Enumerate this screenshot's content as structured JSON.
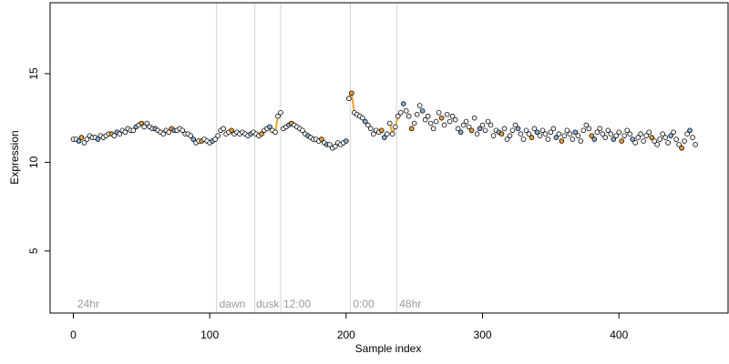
{
  "chart_data": {
    "type": "scatter",
    "title": "",
    "xlabel": "Sample index",
    "ylabel": "Expression",
    "xlim": [
      -17,
      480
    ],
    "ylim": [
      1.5,
      19
    ],
    "xticks": [
      "0",
      "100",
      "200",
      "300",
      "400"
    ],
    "xtick_values": [
      0,
      100,
      200,
      300,
      400
    ],
    "yticks": [
      "5",
      "10",
      "15"
    ],
    "ytick_values": [
      5,
      10,
      15
    ],
    "grid": false,
    "legend": "none",
    "vlines": [
      105,
      133,
      152,
      203,
      237
    ],
    "annotations": [
      {
        "label": "24hr",
        "x": 3
      },
      {
        "label": "dawn",
        "x": 107
      },
      {
        "label": "dusk",
        "x": 134
      },
      {
        "label": "12:00",
        "x": 154
      },
      {
        "label": "0:00",
        "x": 205
      },
      {
        "label": "48hr",
        "x": 239
      }
    ],
    "highlight_segments": [
      [
        148,
        152
      ],
      [
        202,
        206
      ],
      [
        232,
        240
      ]
    ],
    "orange_color": "#f0a030",
    "blue_color": "#87aee0",
    "n_points": 462,
    "points": [
      [
        0,
        11.3
      ],
      [
        2,
        11.3
      ],
      [
        4,
        11.2
      ],
      [
        6,
        11.4
      ],
      [
        8,
        11.1
      ],
      [
        10,
        11.3
      ],
      [
        12,
        11.5
      ],
      [
        14,
        11.4
      ],
      [
        16,
        11.4
      ],
      [
        18,
        11.3
      ],
      [
        20,
        11.5
      ],
      [
        22,
        11.4
      ],
      [
        24,
        11.5
      ],
      [
        26,
        11.6
      ],
      [
        28,
        11.6
      ],
      [
        30,
        11.5
      ],
      [
        32,
        11.7
      ],
      [
        34,
        11.6
      ],
      [
        36,
        11.8
      ],
      [
        38,
        11.7
      ],
      [
        40,
        11.9
      ],
      [
        42,
        11.8
      ],
      [
        44,
        11.8
      ],
      [
        46,
        12.0
      ],
      [
        48,
        12.1
      ],
      [
        50,
        12.2
      ],
      [
        52,
        12.0
      ],
      [
        54,
        12.2
      ],
      [
        56,
        12.0
      ],
      [
        58,
        11.9
      ],
      [
        60,
        11.9
      ],
      [
        62,
        11.8
      ],
      [
        64,
        11.7
      ],
      [
        66,
        11.6
      ],
      [
        68,
        11.8
      ],
      [
        70,
        11.7
      ],
      [
        72,
        11.9
      ],
      [
        74,
        11.8
      ],
      [
        76,
        11.8
      ],
      [
        78,
        11.9
      ],
      [
        80,
        11.8
      ],
      [
        82,
        11.6
      ],
      [
        84,
        11.6
      ],
      [
        86,
        11.5
      ],
      [
        88,
        11.3
      ],
      [
        90,
        11.1
      ],
      [
        92,
        11.2
      ],
      [
        94,
        11.2
      ],
      [
        96,
        11.3
      ],
      [
        98,
        11.2
      ],
      [
        100,
        11.1
      ],
      [
        102,
        11.2
      ],
      [
        104,
        11.3
      ],
      [
        106,
        11.5
      ],
      [
        108,
        11.8
      ],
      [
        110,
        11.9
      ],
      [
        112,
        11.6
      ],
      [
        114,
        11.7
      ],
      [
        116,
        11.8
      ],
      [
        118,
        11.6
      ],
      [
        120,
        11.7
      ],
      [
        122,
        11.6
      ],
      [
        124,
        11.7
      ],
      [
        126,
        11.6
      ],
      [
        128,
        11.5
      ],
      [
        130,
        11.6
      ],
      [
        132,
        11.7
      ],
      [
        134,
        11.6
      ],
      [
        136,
        11.5
      ],
      [
        138,
        11.6
      ],
      [
        140,
        11.8
      ],
      [
        142,
        11.9
      ],
      [
        144,
        12.0
      ],
      [
        146,
        11.8
      ],
      [
        148,
        11.7
      ],
      [
        150,
        12.6
      ],
      [
        152,
        12.8
      ],
      [
        154,
        11.9
      ],
      [
        156,
        12.0
      ],
      [
        158,
        12.1
      ],
      [
        160,
        12.2
      ],
      [
        162,
        12.1
      ],
      [
        164,
        12.0
      ],
      [
        166,
        11.9
      ],
      [
        168,
        11.8
      ],
      [
        170,
        11.6
      ],
      [
        172,
        11.5
      ],
      [
        174,
        11.4
      ],
      [
        176,
        11.3
      ],
      [
        178,
        11.3
      ],
      [
        180,
        11.2
      ],
      [
        182,
        11.3
      ],
      [
        184,
        11.1
      ],
      [
        186,
        11.0
      ],
      [
        188,
        11.0
      ],
      [
        190,
        10.8
      ],
      [
        192,
        10.9
      ],
      [
        194,
        11.1
      ],
      [
        196,
        11.0
      ],
      [
        198,
        11.1
      ],
      [
        200,
        11.2
      ],
      [
        202,
        13.6
      ],
      [
        204,
        13.9
      ],
      [
        206,
        12.8
      ],
      [
        208,
        12.7
      ],
      [
        210,
        12.6
      ],
      [
        212,
        12.5
      ],
      [
        214,
        12.3
      ],
      [
        216,
        12.1
      ],
      [
        218,
        11.9
      ],
      [
        220,
        11.6
      ],
      [
        222,
        11.8
      ],
      [
        224,
        11.7
      ],
      [
        226,
        11.8
      ],
      [
        228,
        11.4
      ],
      [
        230,
        11.6
      ],
      [
        232,
        12.2
      ],
      [
        234,
        11.6
      ],
      [
        236,
        12.0
      ],
      [
        238,
        12.6
      ],
      [
        240,
        12.8
      ],
      [
        242,
        13.3
      ],
      [
        244,
        12.9
      ],
      [
        246,
        12.6
      ],
      [
        248,
        11.9
      ],
      [
        250,
        12.2
      ],
      [
        252,
        12.7
      ],
      [
        254,
        13.2
      ],
      [
        256,
        12.9
      ],
      [
        258,
        12.4
      ],
      [
        260,
        12.6
      ],
      [
        262,
        12.2
      ],
      [
        264,
        11.9
      ],
      [
        266,
        12.3
      ],
      [
        268,
        12.8
      ],
      [
        270,
        12.5
      ],
      [
        272,
        12.1
      ],
      [
        274,
        12.7
      ],
      [
        276,
        12.3
      ],
      [
        278,
        12.6
      ],
      [
        280,
        12.4
      ],
      [
        282,
        11.9
      ],
      [
        284,
        11.7
      ],
      [
        286,
        12.1
      ],
      [
        288,
        12.3
      ],
      [
        290,
        12.0
      ],
      [
        292,
        11.8
      ],
      [
        294,
        12.5
      ],
      [
        296,
        11.6
      ],
      [
        298,
        11.9
      ],
      [
        300,
        12.1
      ],
      [
        302,
        11.8
      ],
      [
        304,
        12.3
      ],
      [
        306,
        12.1
      ],
      [
        308,
        11.5
      ],
      [
        310,
        11.8
      ],
      [
        312,
        11.7
      ],
      [
        314,
        11.6
      ],
      [
        316,
        11.9
      ],
      [
        318,
        11.3
      ],
      [
        320,
        11.5
      ],
      [
        322,
        11.8
      ],
      [
        324,
        12.1
      ],
      [
        326,
        11.9
      ],
      [
        328,
        11.6
      ],
      [
        330,
        11.3
      ],
      [
        332,
        11.8
      ],
      [
        334,
        11.6
      ],
      [
        336,
        11.4
      ],
      [
        338,
        11.9
      ],
      [
        340,
        11.7
      ],
      [
        342,
        11.5
      ],
      [
        344,
        11.8
      ],
      [
        346,
        11.6
      ],
      [
        348,
        11.3
      ],
      [
        350,
        11.7
      ],
      [
        352,
        11.9
      ],
      [
        354,
        11.4
      ],
      [
        356,
        11.6
      ],
      [
        358,
        11.2
      ],
      [
        360,
        11.5
      ],
      [
        362,
        11.8
      ],
      [
        364,
        11.6
      ],
      [
        366,
        11.3
      ],
      [
        368,
        11.7
      ],
      [
        370,
        11.5
      ],
      [
        372,
        11.2
      ],
      [
        374,
        11.8
      ],
      [
        376,
        12.1
      ],
      [
        378,
        11.9
      ],
      [
        380,
        11.5
      ],
      [
        382,
        11.3
      ],
      [
        384,
        11.7
      ],
      [
        386,
        11.9
      ],
      [
        388,
        11.6
      ],
      [
        390,
        11.4
      ],
      [
        392,
        11.8
      ],
      [
        394,
        11.6
      ],
      [
        396,
        11.3
      ],
      [
        398,
        11.5
      ],
      [
        400,
        11.7
      ],
      [
        402,
        11.2
      ],
      [
        404,
        11.5
      ],
      [
        406,
        11.8
      ],
      [
        408,
        11.6
      ],
      [
        410,
        11.3
      ],
      [
        412,
        11.1
      ],
      [
        414,
        11.4
      ],
      [
        416,
        11.6
      ],
      [
        418,
        11.2
      ],
      [
        420,
        11.5
      ],
      [
        422,
        11.7
      ],
      [
        424,
        11.4
      ],
      [
        426,
        11.2
      ],
      [
        428,
        11.0
      ],
      [
        430,
        11.3
      ],
      [
        432,
        11.6
      ],
      [
        434,
        11.4
      ],
      [
        436,
        11.1
      ],
      [
        438,
        11.5
      ],
      [
        440,
        11.7
      ],
      [
        442,
        11.3
      ],
      [
        444,
        11.0
      ],
      [
        446,
        10.8
      ],
      [
        448,
        11.2
      ],
      [
        450,
        11.6
      ],
      [
        452,
        11.8
      ],
      [
        454,
        11.4
      ],
      [
        456,
        11.0
      ]
    ]
  }
}
